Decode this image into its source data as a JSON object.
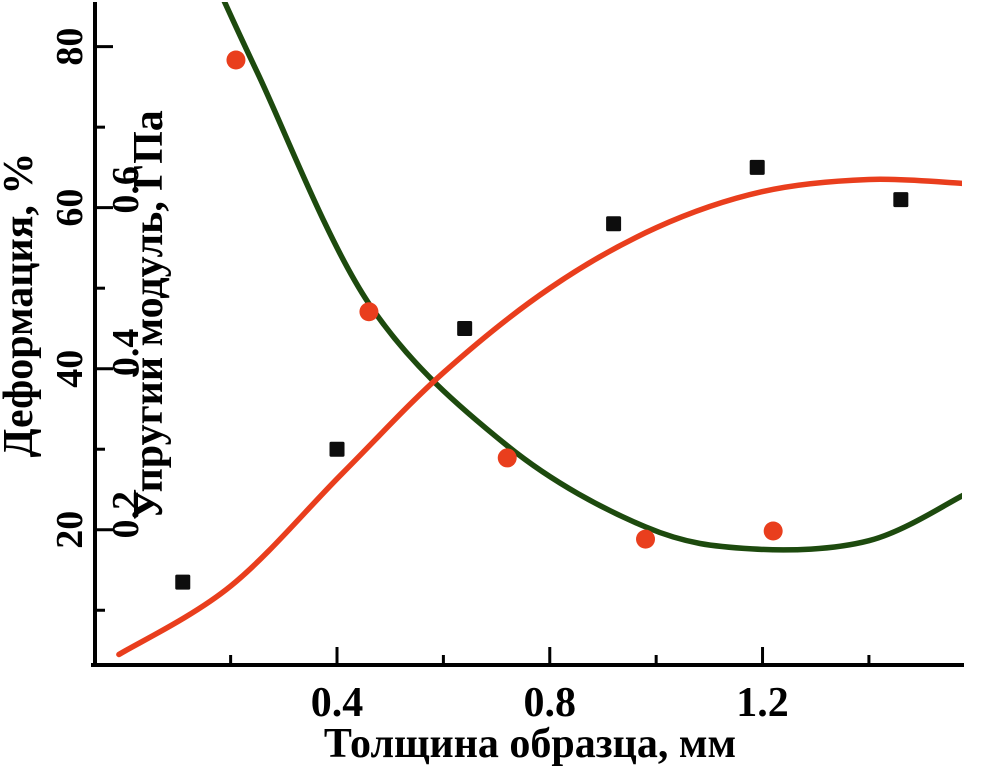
{
  "chart_data": {
    "type": "scatter",
    "title": "",
    "xlabel": "Толщина образца, мм",
    "ylabel_outer": "Деформация, %",
    "ylabel_inner": "Упругий модуль, ГПа",
    "grid": "off",
    "legend": "none",
    "x_axis": {
      "lim": [
        -0.055,
        1.575
      ],
      "major_ticks": [
        {
          "v": 0.4,
          "label": "0.4"
        },
        {
          "v": 0.8,
          "label": "0.8"
        },
        {
          "v": 1.2,
          "label": "1.2"
        }
      ],
      "minor_ticks": [
        0.2,
        0.6,
        1.0,
        1.4
      ]
    },
    "y_axis_deformation": {
      "lim": [
        3.2,
        84.8
      ],
      "major_ticks": [
        {
          "v": 20,
          "label": "20"
        },
        {
          "v": 40,
          "label": "40"
        },
        {
          "v": 60,
          "label": "60"
        },
        {
          "v": 80,
          "label": "80"
        }
      ],
      "minor_ticks": [
        10,
        30,
        50,
        70
      ]
    },
    "y_axis_modulus": {
      "lim": [
        0.015,
        0.824
      ],
      "labels": [
        {
          "v": 0.2,
          "label": "0.2"
        },
        {
          "v": 0.4,
          "label": "0.4"
        },
        {
          "v": 0.6,
          "label": "0.6"
        }
      ]
    },
    "colors": {
      "axis": "#000000",
      "deformation_curve": "#e93e1d",
      "deformation_marker": "#0d0d0d",
      "modulus_curve": "#1d4a0e",
      "modulus_marker": "#e93e1d"
    },
    "series": [
      {
        "name": "deformation",
        "label": "Деформация, %",
        "axis": "deformation",
        "marker": "square",
        "marker_color": "#0d0d0d",
        "curve_color": "#e93e1d",
        "points": [
          [
            0.11,
            13.5
          ],
          [
            0.4,
            30
          ],
          [
            0.64,
            45
          ],
          [
            0.92,
            58
          ],
          [
            1.19,
            65
          ],
          [
            1.46,
            61
          ]
        ],
        "fit_curve": [
          [
            -0.01,
            4.5
          ],
          [
            0.2,
            13
          ],
          [
            0.41,
            27
          ],
          [
            0.6,
            39.5
          ],
          [
            0.8,
            50
          ],
          [
            1.0,
            57.5
          ],
          [
            1.2,
            62
          ],
          [
            1.4,
            63.5
          ],
          [
            1.58,
            63
          ]
        ]
      },
      {
        "name": "modulus",
        "label": "Упругий модуль, ГПа",
        "axis": "modulus",
        "marker": "circle",
        "marker_color": "#e93e1d",
        "curve_color": "#1d4a0e",
        "points": [
          [
            0.21,
            0.76
          ],
          [
            0.46,
            0.45
          ],
          [
            0.72,
            0.27
          ],
          [
            0.98,
            0.17
          ],
          [
            1.22,
            0.18
          ]
        ],
        "fit_curve": [
          [
            0.155,
            0.88
          ],
          [
            0.25,
            0.745
          ],
          [
            0.46,
            0.46
          ],
          [
            0.72,
            0.285
          ],
          [
            0.98,
            0.185
          ],
          [
            1.18,
            0.158
          ],
          [
            1.4,
            0.168
          ],
          [
            1.58,
            0.225
          ]
        ]
      }
    ]
  }
}
